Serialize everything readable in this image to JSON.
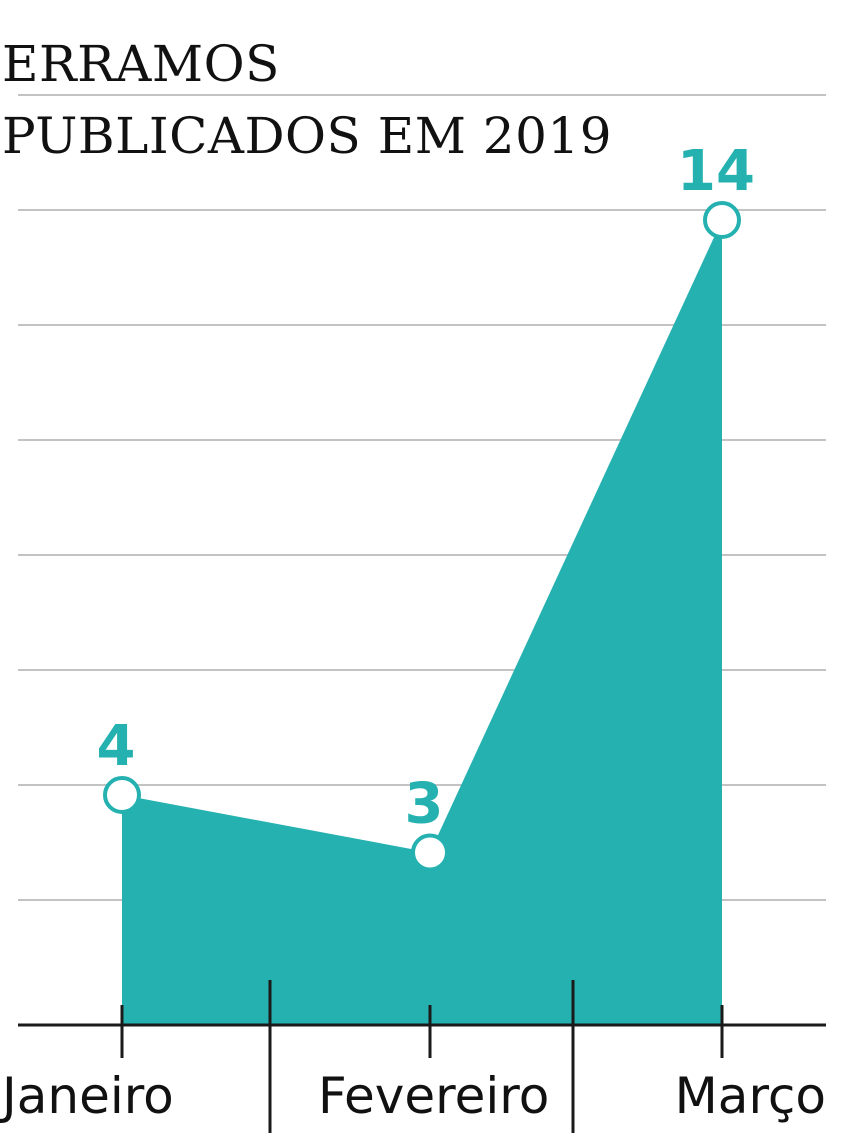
{
  "title_lines": [
    "ERRAMOS",
    "PUBLICADOS EM 2019"
  ],
  "colors": {
    "area": "#24b1b0",
    "label": "#24b1b0",
    "grid": "#c3c3c3",
    "axis": "#1a1a1a",
    "marker_fill": "#ffffff"
  },
  "chart_data": {
    "type": "area",
    "title": "ERRAMOS PUBLICADOS EM 2019",
    "categories": [
      "Janeiro",
      "Fevereiro",
      "Março"
    ],
    "values": [
      4,
      3,
      14
    ],
    "xlabel": "",
    "ylabel": "",
    "ylim": [
      0,
      16
    ],
    "grid": true,
    "legend": "none"
  }
}
